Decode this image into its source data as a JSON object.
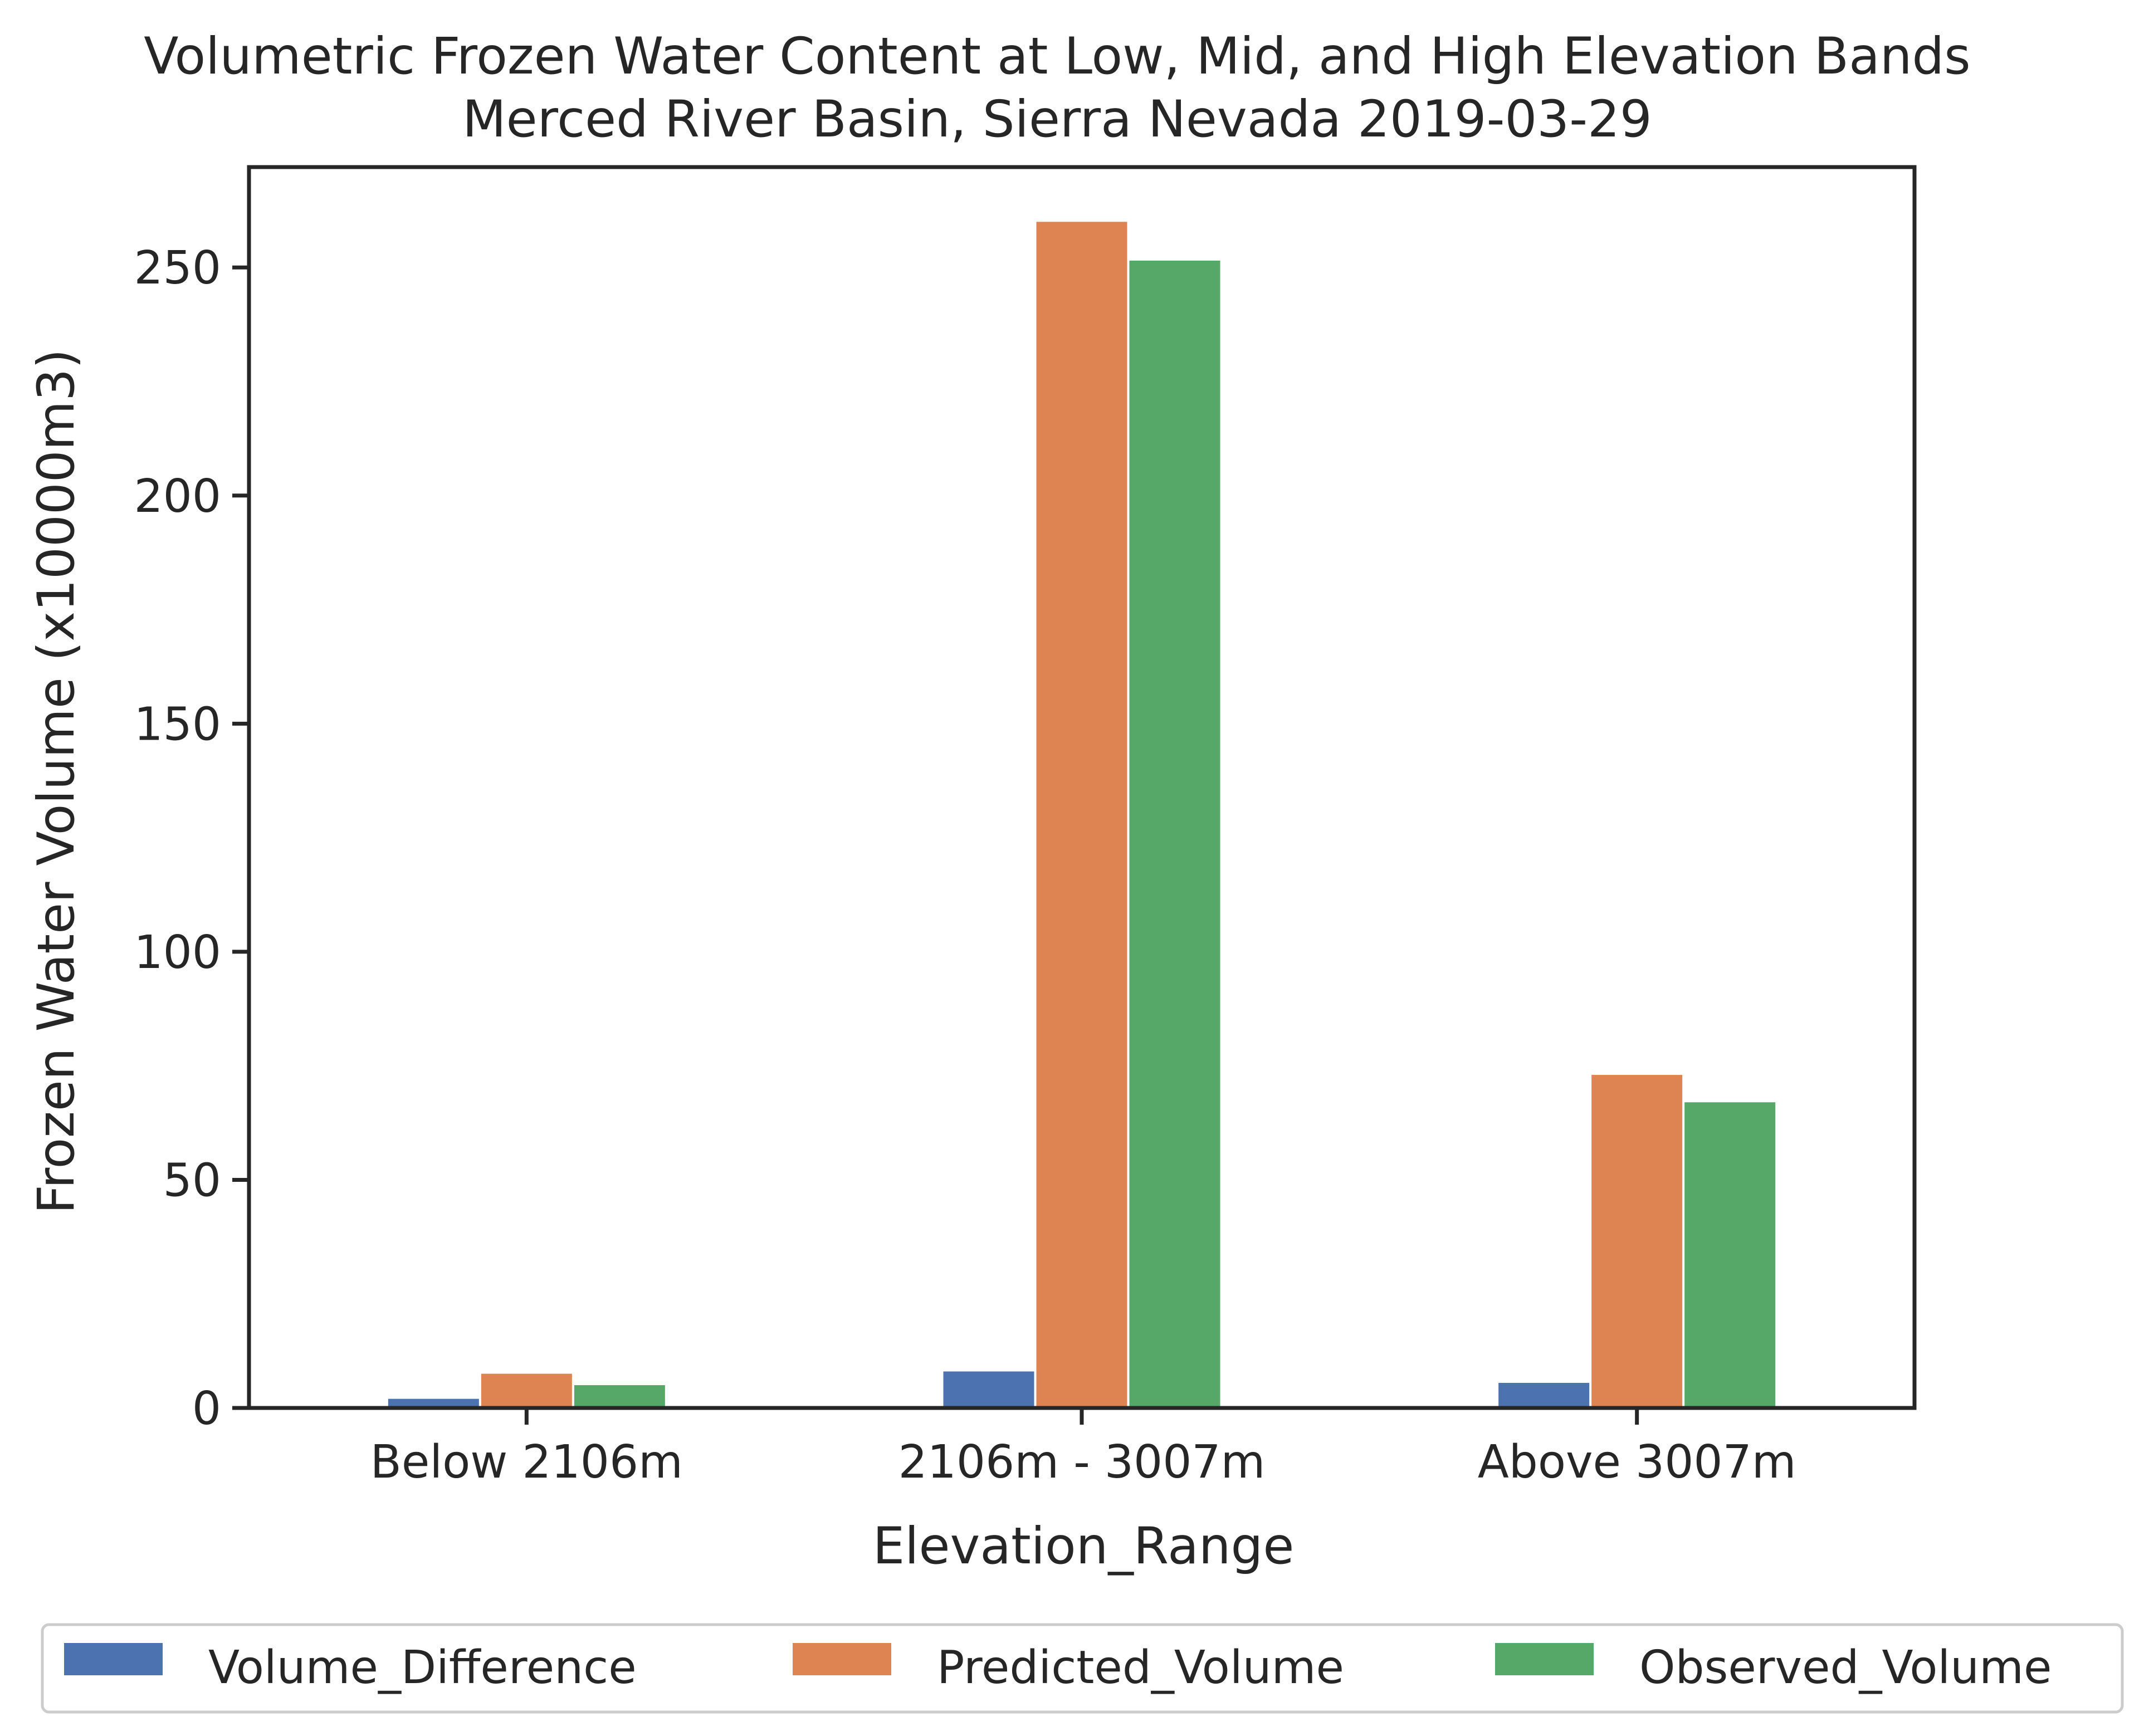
{
  "chart_data": {
    "type": "bar",
    "title": "Volumetric Frozen Water Content at Low, Mid, and High Elevation Bands",
    "subtitle": "Merced River Basin, Sierra Nevada 2019-03-29",
    "xlabel": "Elevation_Range",
    "ylabel": "Frozen Water Volume (x10000m3)",
    "categories": [
      "Below 2106m",
      "2106m - 3007m",
      "Above 3007m"
    ],
    "ylim": [
      0,
      272
    ],
    "yticks": [
      0,
      50,
      100,
      150,
      200,
      250
    ],
    "grid": false,
    "legend_position": "bottom-center",
    "series": [
      {
        "name": "Volume_Difference",
        "color": "#4c72b0",
        "values": [
          2,
          8,
          5.5
        ]
      },
      {
        "name": "Predicted_Volume",
        "color": "#dd8452",
        "values": [
          7.5,
          260,
          73
        ]
      },
      {
        "name": "Observed_Volume",
        "color": "#55a868",
        "values": [
          5,
          251.5,
          67
        ]
      }
    ]
  }
}
